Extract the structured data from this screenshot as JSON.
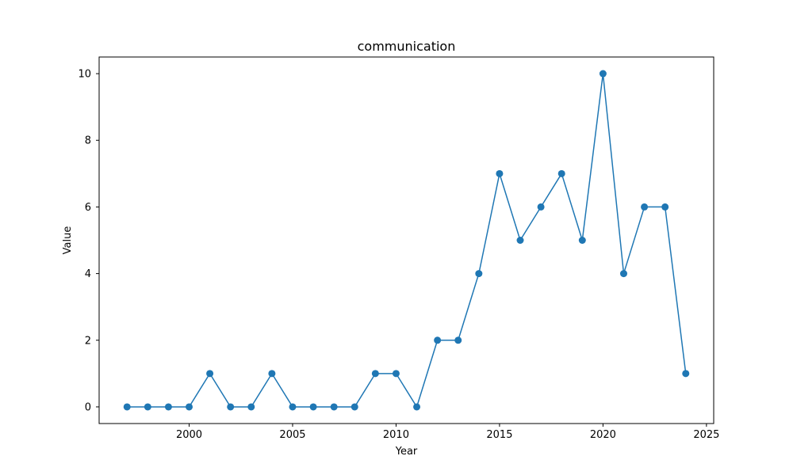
{
  "chart_data": {
    "type": "line",
    "title": "communication",
    "xlabel": "Year",
    "ylabel": "Value",
    "xlim": [
      1995.65,
      2025.35
    ],
    "ylim": [
      -0.5,
      10.5
    ],
    "x_ticks": [
      2000,
      2005,
      2010,
      2015,
      2020,
      2025
    ],
    "y_ticks": [
      0,
      2,
      4,
      6,
      8,
      10
    ],
    "grid": false,
    "series": [
      {
        "color": "#1f77b4",
        "marker": "circle",
        "x": [
          1997,
          1998,
          1999,
          2000,
          2001,
          2002,
          2003,
          2004,
          2005,
          2006,
          2007,
          2008,
          2009,
          2010,
          2011,
          2012,
          2013,
          2014,
          2015,
          2016,
          2017,
          2018,
          2019,
          2020,
          2021,
          2022,
          2023,
          2024
        ],
        "y": [
          0,
          0,
          0,
          0,
          1,
          0,
          0,
          1,
          0,
          0,
          0,
          0,
          1,
          1,
          0,
          2,
          2,
          4,
          7,
          5,
          6,
          7,
          5,
          10,
          4,
          6,
          6,
          1
        ]
      }
    ]
  }
}
